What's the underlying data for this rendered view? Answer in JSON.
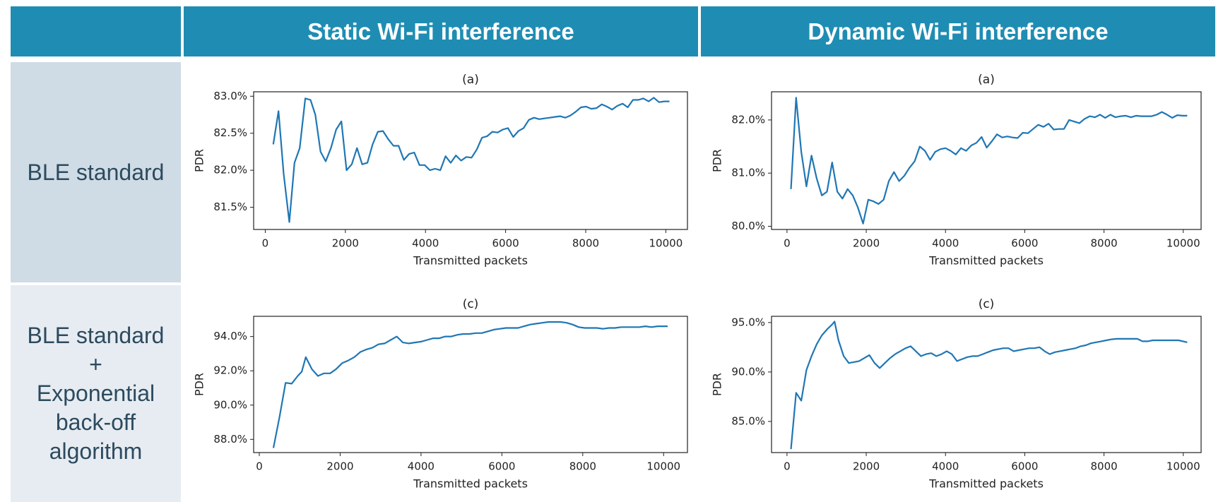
{
  "header": {
    "col1": "Static Wi-Fi interference",
    "col2": "Dynamic Wi-Fi interference"
  },
  "rows": [
    {
      "lines": [
        "BLE standard"
      ]
    },
    {
      "lines": [
        "BLE standard",
        "+",
        "Exponential",
        "back-off",
        "algorithm"
      ]
    }
  ],
  "chart_data": [
    {
      "type": "line",
      "title": "(a)",
      "x_label": "Transmitted packets",
      "y_label": "PDR",
      "color": "#1f77b4",
      "xlim": [
        -290,
        10540
      ],
      "xticks": [
        0,
        2000,
        4000,
        6000,
        8000,
        10000
      ],
      "ylim": [
        81.2,
        83.06
      ],
      "yticks": [
        {
          "value": 81.5,
          "label": "81.5%"
        },
        {
          "value": 82,
          "label": "82.0%"
        },
        {
          "value": 82.5,
          "label": "82.5%"
        },
        {
          "value": 83,
          "label": "83.0%"
        }
      ],
      "x": [
        200,
        330,
        460,
        600,
        730,
        860,
        1000,
        1130,
        1250,
        1380,
        1510,
        1640,
        1770,
        1900,
        2030,
        2160,
        2290,
        2420,
        2550,
        2680,
        2810,
        2940,
        3070,
        3200,
        3330,
        3460,
        3590,
        3720,
        3850,
        3980,
        4110,
        4240,
        4370,
        4500,
        4630,
        4760,
        4890,
        5020,
        5150,
        5280,
        5410,
        5540,
        5670,
        5800,
        5930,
        6060,
        6190,
        6320,
        6450,
        6580,
        6710,
        6840,
        6970,
        7100,
        7230,
        7360,
        7490,
        7620,
        7750,
        7880,
        8010,
        8140,
        8270,
        8400,
        8530,
        8660,
        8790,
        8920,
        9050,
        9180,
        9310,
        9440,
        9570,
        9700,
        9830,
        9960,
        10090
      ],
      "values": [
        82.35,
        82.8,
        81.95,
        81.3,
        82.1,
        82.3,
        82.97,
        82.95,
        82.75,
        82.25,
        82.12,
        82.3,
        82.55,
        82.66,
        82.0,
        82.08,
        82.3,
        82.08,
        82.1,
        82.35,
        82.52,
        82.53,
        82.42,
        82.33,
        82.33,
        82.14,
        82.22,
        82.24,
        82.07,
        82.07,
        82.0,
        82.02,
        82.0,
        82.19,
        82.1,
        82.2,
        82.13,
        82.18,
        82.17,
        82.28,
        82.44,
        82.46,
        82.52,
        82.51,
        82.55,
        82.57,
        82.45,
        82.53,
        82.57,
        82.68,
        82.71,
        82.69,
        82.7,
        82.71,
        82.72,
        82.73,
        82.71,
        82.74,
        82.79,
        82.85,
        82.86,
        82.83,
        82.84,
        82.89,
        82.86,
        82.82,
        82.87,
        82.9,
        82.85,
        82.95,
        82.95,
        82.97,
        82.93,
        82.98,
        82.92,
        82.93,
        82.93
      ]
    },
    {
      "type": "line",
      "title": "(a)",
      "x_label": "Transmitted packets",
      "y_label": "PDR",
      "color": "#1f77b4",
      "xlim": [
        -390,
        10450
      ],
      "xticks": [
        0,
        2000,
        4000,
        6000,
        8000,
        10000
      ],
      "ylim": [
        79.94,
        82.53
      ],
      "yticks": [
        {
          "value": 80,
          "label": "80.0%"
        },
        {
          "value": 81,
          "label": "81.0%"
        },
        {
          "value": 82,
          "label": "82.0%"
        }
      ],
      "x": [
        100,
        230,
        360,
        490,
        620,
        750,
        880,
        1010,
        1140,
        1270,
        1400,
        1530,
        1660,
        1790,
        1920,
        2050,
        2180,
        2310,
        2440,
        2570,
        2700,
        2830,
        2960,
        3090,
        3220,
        3350,
        3480,
        3610,
        3740,
        3870,
        4000,
        4130,
        4260,
        4390,
        4520,
        4650,
        4780,
        4910,
        5040,
        5170,
        5300,
        5430,
        5560,
        5690,
        5820,
        5950,
        6080,
        6210,
        6340,
        6470,
        6600,
        6730,
        6860,
        6990,
        7120,
        7250,
        7380,
        7510,
        7640,
        7770,
        7900,
        8030,
        8160,
        8290,
        8420,
        8550,
        8680,
        8810,
        8940,
        9070,
        9200,
        9330,
        9460,
        9590,
        9720,
        9850,
        9980,
        10100
      ],
      "values": [
        80.7,
        82.42,
        81.4,
        80.75,
        81.33,
        80.9,
        80.58,
        80.65,
        81.2,
        80.65,
        80.52,
        80.7,
        80.58,
        80.35,
        80.05,
        80.5,
        80.47,
        80.42,
        80.5,
        80.85,
        81.02,
        80.85,
        80.95,
        81.1,
        81.22,
        81.5,
        81.42,
        81.25,
        81.4,
        81.45,
        81.47,
        81.42,
        81.35,
        81.47,
        81.42,
        81.52,
        81.57,
        81.68,
        81.48,
        81.6,
        81.73,
        81.67,
        81.69,
        81.67,
        81.66,
        81.76,
        81.75,
        81.83,
        81.91,
        81.87,
        81.93,
        81.82,
        81.83,
        81.83,
        82.0,
        81.97,
        81.94,
        82.02,
        82.07,
        82.05,
        82.1,
        82.04,
        82.1,
        82.05,
        82.07,
        82.08,
        82.05,
        82.08,
        82.07,
        82.07,
        82.07,
        82.1,
        82.15,
        82.1,
        82.04,
        82.09,
        82.08,
        82.08
      ]
    },
    {
      "type": "line",
      "title": "(c)",
      "x_label": "Transmitted packets",
      "y_label": "PDR",
      "color": "#1f77b4",
      "xlim": [
        -140,
        10590
      ],
      "xticks": [
        0,
        2000,
        4000,
        6000,
        8000,
        10000
      ],
      "ylim": [
        87.23,
        95.18
      ],
      "yticks": [
        {
          "value": 88,
          "label": "88.0%"
        },
        {
          "value": 90,
          "label": "90.0%"
        },
        {
          "value": 92,
          "label": "92.0%"
        },
        {
          "value": 94,
          "label": "94.0%"
        }
      ],
      "x": [
        350,
        500,
        650,
        800,
        950,
        1050,
        1150,
        1300,
        1450,
        1600,
        1750,
        1900,
        2050,
        2200,
        2350,
        2500,
        2650,
        2800,
        2950,
        3100,
        3250,
        3400,
        3550,
        3700,
        3850,
        4000,
        4150,
        4300,
        4450,
        4600,
        4750,
        4900,
        5050,
        5200,
        5350,
        5500,
        5650,
        5800,
        5950,
        6100,
        6250,
        6400,
        6550,
        6700,
        6850,
        7000,
        7150,
        7300,
        7450,
        7600,
        7750,
        7900,
        8050,
        8200,
        8350,
        8500,
        8650,
        8800,
        8950,
        9100,
        9250,
        9400,
        9550,
        9700,
        9850,
        10000,
        10100
      ],
      "values": [
        87.5,
        89.3,
        91.3,
        91.25,
        91.7,
        91.95,
        92.8,
        92.1,
        91.7,
        91.85,
        91.85,
        92.1,
        92.45,
        92.6,
        92.8,
        93.1,
        93.25,
        93.35,
        93.55,
        93.6,
        93.8,
        94.0,
        93.65,
        93.6,
        93.65,
        93.7,
        93.8,
        93.9,
        93.9,
        94.0,
        94.0,
        94.1,
        94.15,
        94.15,
        94.2,
        94.2,
        94.3,
        94.4,
        94.45,
        94.5,
        94.5,
        94.5,
        94.6,
        94.7,
        94.75,
        94.8,
        94.85,
        94.85,
        94.85,
        94.8,
        94.7,
        94.55,
        94.5,
        94.5,
        94.5,
        94.45,
        94.5,
        94.5,
        94.55,
        94.55,
        94.55,
        94.55,
        94.6,
        94.55,
        94.6,
        94.6,
        94.6
      ]
    },
    {
      "type": "line",
      "title": "(c)",
      "x_label": "Transmitted packets",
      "y_label": "PDR",
      "color": "#1f77b4",
      "xlim": [
        -390,
        10450
      ],
      "xticks": [
        0,
        2000,
        4000,
        6000,
        8000,
        10000
      ],
      "ylim": [
        81.85,
        95.63
      ],
      "yticks": [
        {
          "value": 85,
          "label": "85.0%"
        },
        {
          "value": 90,
          "label": "90.0%"
        },
        {
          "value": 95,
          "label": "95.0%"
        }
      ],
      "x": [
        100,
        230,
        360,
        490,
        620,
        750,
        880,
        1010,
        1140,
        1200,
        1300,
        1430,
        1560,
        1690,
        1820,
        1950,
        2080,
        2210,
        2340,
        2470,
        2600,
        2730,
        2860,
        2990,
        3120,
        3250,
        3380,
        3510,
        3640,
        3770,
        3900,
        4030,
        4160,
        4290,
        4420,
        4550,
        4680,
        4810,
        4940,
        5070,
        5200,
        5330,
        5460,
        5590,
        5720,
        5850,
        5980,
        6110,
        6240,
        6370,
        6500,
        6630,
        6760,
        6890,
        7020,
        7150,
        7280,
        7410,
        7540,
        7670,
        7800,
        7930,
        8060,
        8190,
        8320,
        8450,
        8580,
        8710,
        8840,
        8970,
        9100,
        9230,
        9360,
        9490,
        9620,
        9750,
        9880,
        10100
      ],
      "values": [
        82.2,
        87.9,
        87.1,
        90.2,
        91.6,
        92.8,
        93.7,
        94.3,
        94.8,
        95.1,
        93.2,
        91.6,
        90.9,
        91.0,
        91.1,
        91.4,
        91.7,
        90.9,
        90.4,
        90.9,
        91.4,
        91.8,
        92.1,
        92.4,
        92.6,
        92.1,
        91.6,
        91.8,
        91.9,
        91.6,
        91.8,
        92.1,
        91.8,
        91.1,
        91.3,
        91.5,
        91.6,
        91.6,
        91.8,
        92.0,
        92.2,
        92.3,
        92.4,
        92.4,
        92.1,
        92.2,
        92.3,
        92.4,
        92.4,
        92.5,
        92.1,
        91.8,
        92.0,
        92.1,
        92.2,
        92.3,
        92.4,
        92.6,
        92.7,
        92.9,
        93.0,
        93.1,
        93.2,
        93.3,
        93.35,
        93.35,
        93.35,
        93.35,
        93.35,
        93.1,
        93.1,
        93.2,
        93.2,
        93.2,
        93.2,
        93.2,
        93.2,
        93.0
      ]
    }
  ]
}
